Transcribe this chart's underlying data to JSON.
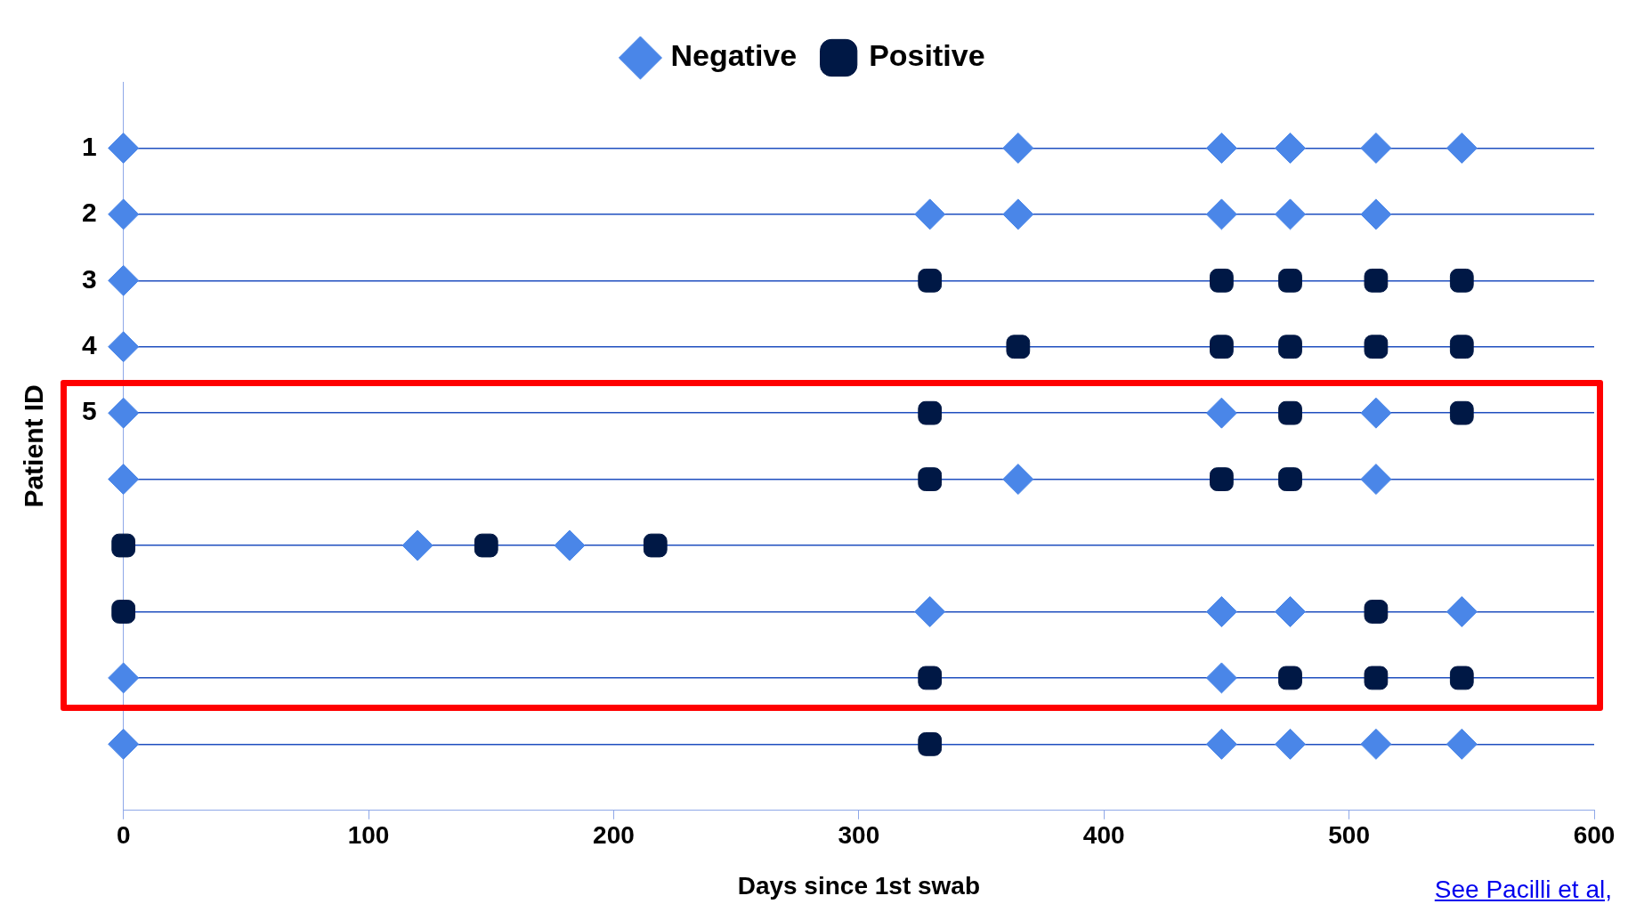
{
  "chart_data": {
    "type": "scatter",
    "xlabel": "Days since 1st swab",
    "ylabel": "Patient ID",
    "xlim": [
      0,
      600
    ],
    "xticks": [
      0,
      100,
      200,
      300,
      400,
      500,
      600
    ],
    "ylim": [
      11,
      0
    ],
    "yticks": [
      1,
      2,
      3,
      4,
      5,
      {
        "value": 6,
        "label": null
      },
      {
        "value": 7,
        "label": null
      },
      {
        "value": 8,
        "label": null
      },
      {
        "value": 9,
        "label": null
      },
      {
        "value": 10,
        "label": null
      }
    ],
    "grid": "y",
    "legend": "top",
    "series": [
      {
        "name": "Negative",
        "color": "#4a86e8",
        "marker": "diamond",
        "x": [
          0,
          365,
          448,
          476,
          511,
          546,
          0,
          329,
          365,
          448,
          476,
          511,
          0,
          0,
          0,
          448,
          511,
          0,
          365,
          511,
          120,
          182,
          329,
          448,
          476,
          546,
          0,
          448,
          0,
          448,
          476,
          511,
          546
        ],
        "values": [
          1,
          1,
          1,
          1,
          1,
          1,
          2,
          2,
          2,
          2,
          2,
          2,
          3,
          4,
          5,
          5,
          5,
          6,
          6,
          6,
          7,
          7,
          8,
          8,
          8,
          8,
          9,
          9,
          10,
          10,
          10,
          10,
          10
        ]
      },
      {
        "name": "Positive",
        "color": "#001845",
        "marker": "square",
        "x": [
          329,
          448,
          476,
          511,
          546,
          365,
          448,
          476,
          511,
          546,
          329,
          476,
          546,
          329,
          448,
          476,
          0,
          148,
          217,
          0,
          511,
          329,
          476,
          511,
          546,
          329
        ],
        "values": [
          3,
          3,
          3,
          3,
          3,
          4,
          4,
          4,
          4,
          4,
          5,
          5,
          5,
          6,
          6,
          6,
          7,
          7,
          7,
          8,
          8,
          9,
          9,
          9,
          9,
          10
        ]
      }
    ],
    "annotations": [
      "See Pacilli et al,"
    ]
  }
}
